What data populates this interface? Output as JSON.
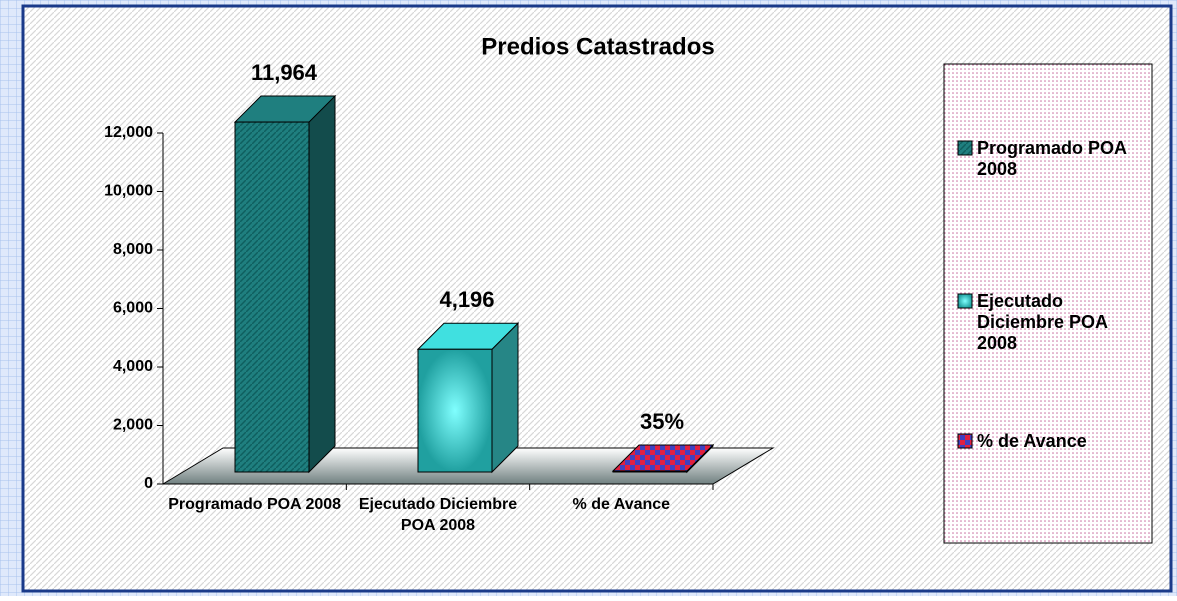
{
  "chart_data": {
    "type": "bar3d",
    "title": "Predios Catastrados",
    "categories": [
      "Programado POA 2008",
      "Ejecutado Diciembre POA 2008",
      "% de  Avance"
    ],
    "values": [
      11964,
      4196,
      35
    ],
    "value_labels": [
      "11,964",
      "4,196",
      "35%"
    ],
    "colors": [
      "#1f7f7f",
      "#40e0e0",
      "#c0205a"
    ],
    "legend": [
      "Programado POA 2008",
      "Ejecutado Diciembre POA 2008",
      "% de Avance"
    ],
    "ylim": [
      0,
      12000
    ],
    "yticks": [
      0,
      {
        "value": 2000,
        "label": "2,000"
      },
      {
        "value": 4000,
        "label": "4,000"
      },
      {
        "value": 6000,
        "label": "6,000"
      },
      {
        "value": 8000,
        "label": "8,000"
      },
      {
        "value": 10000,
        "label": "10,000"
      },
      {
        "value": 12000,
        "label": "12,000"
      }
    ]
  }
}
